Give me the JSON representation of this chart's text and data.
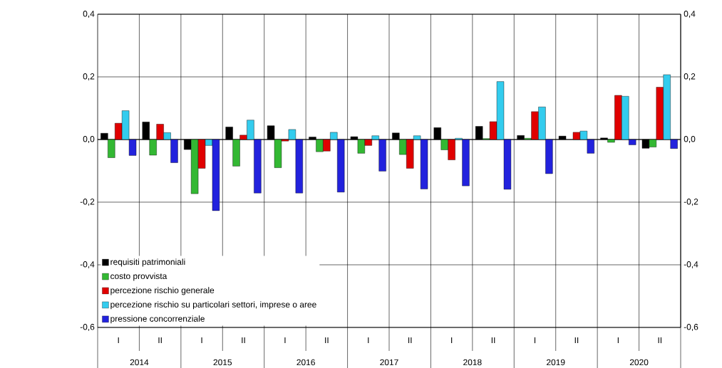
{
  "chart_data": {
    "type": "bar",
    "categories": [
      "I",
      "II",
      "I",
      "II",
      "I",
      "II",
      "I",
      "II",
      "I",
      "II",
      "I",
      "II",
      "I",
      "II"
    ],
    "series": [
      {
        "name": "requisiti patrimoniali",
        "color": "#000000",
        "values": [
          0.02,
          0.056,
          -0.032,
          0.04,
          0.044,
          0.008,
          0.009,
          0.021,
          0.038,
          0.042,
          0.013,
          0.011,
          0.005,
          -0.028
        ]
      },
      {
        "name": "costo provvista",
        "color": "#33b833",
        "values": [
          -0.058,
          -0.05,
          -0.173,
          -0.085,
          -0.09,
          -0.039,
          -0.044,
          -0.048,
          -0.033,
          0.003,
          0.004,
          null,
          -0.009,
          -0.024
        ]
      },
      {
        "name": "percezione rischio generale",
        "color": "#e00000",
        "values": [
          0.052,
          0.049,
          -0.092,
          0.014,
          -0.005,
          -0.037,
          -0.019,
          -0.092,
          -0.065,
          0.057,
          0.089,
          0.023,
          0.141,
          0.167
        ]
      },
      {
        "name": "percezione rischio su particolari settori, imprese o aree",
        "color": "#33ccee",
        "values": [
          0.092,
          0.022,
          -0.019,
          0.062,
          0.032,
          0.023,
          0.012,
          0.012,
          0.004,
          0.185,
          0.104,
          0.027,
          0.138,
          0.207
        ]
      },
      {
        "name": "pressione concorrenziale",
        "color": "#2222dd",
        "values": [
          -0.051,
          -0.074,
          -0.227,
          -0.171,
          -0.171,
          -0.168,
          -0.101,
          -0.158,
          -0.148,
          -0.159,
          -0.109,
          -0.044,
          -0.017,
          -0.029
        ]
      }
    ],
    "ylim": [
      -0.6,
      0.4
    ],
    "yticks": [
      {
        "value": -0.6,
        "label": "-0,6"
      },
      {
        "value": -0.4,
        "label": "-0,4"
      },
      {
        "value": -0.2,
        "label": "-0,2"
      },
      {
        "value": 0.0,
        "label": "0,0"
      },
      {
        "value": 0.2,
        "label": "0,2"
      },
      {
        "value": 0.4,
        "label": "0,4"
      }
    ],
    "y2lim": [
      -0.6,
      0.4
    ],
    "y2ticks": [
      {
        "value": -0.6,
        "label": "-0,6"
      },
      {
        "value": -0.4,
        "label": "-0,4"
      },
      {
        "value": -0.2,
        "label": "-0,2"
      },
      {
        "value": 0.0,
        "label": "0,0"
      },
      {
        "value": 0.2,
        "label": "0,2"
      },
      {
        "value": 0.4,
        "label": "0,4"
      }
    ],
    "annotations": [
      "2014",
      "2015",
      "2016",
      "2017",
      "2018",
      "2019",
      "2020"
    ],
    "grid": true,
    "legend": "bottom left"
  }
}
